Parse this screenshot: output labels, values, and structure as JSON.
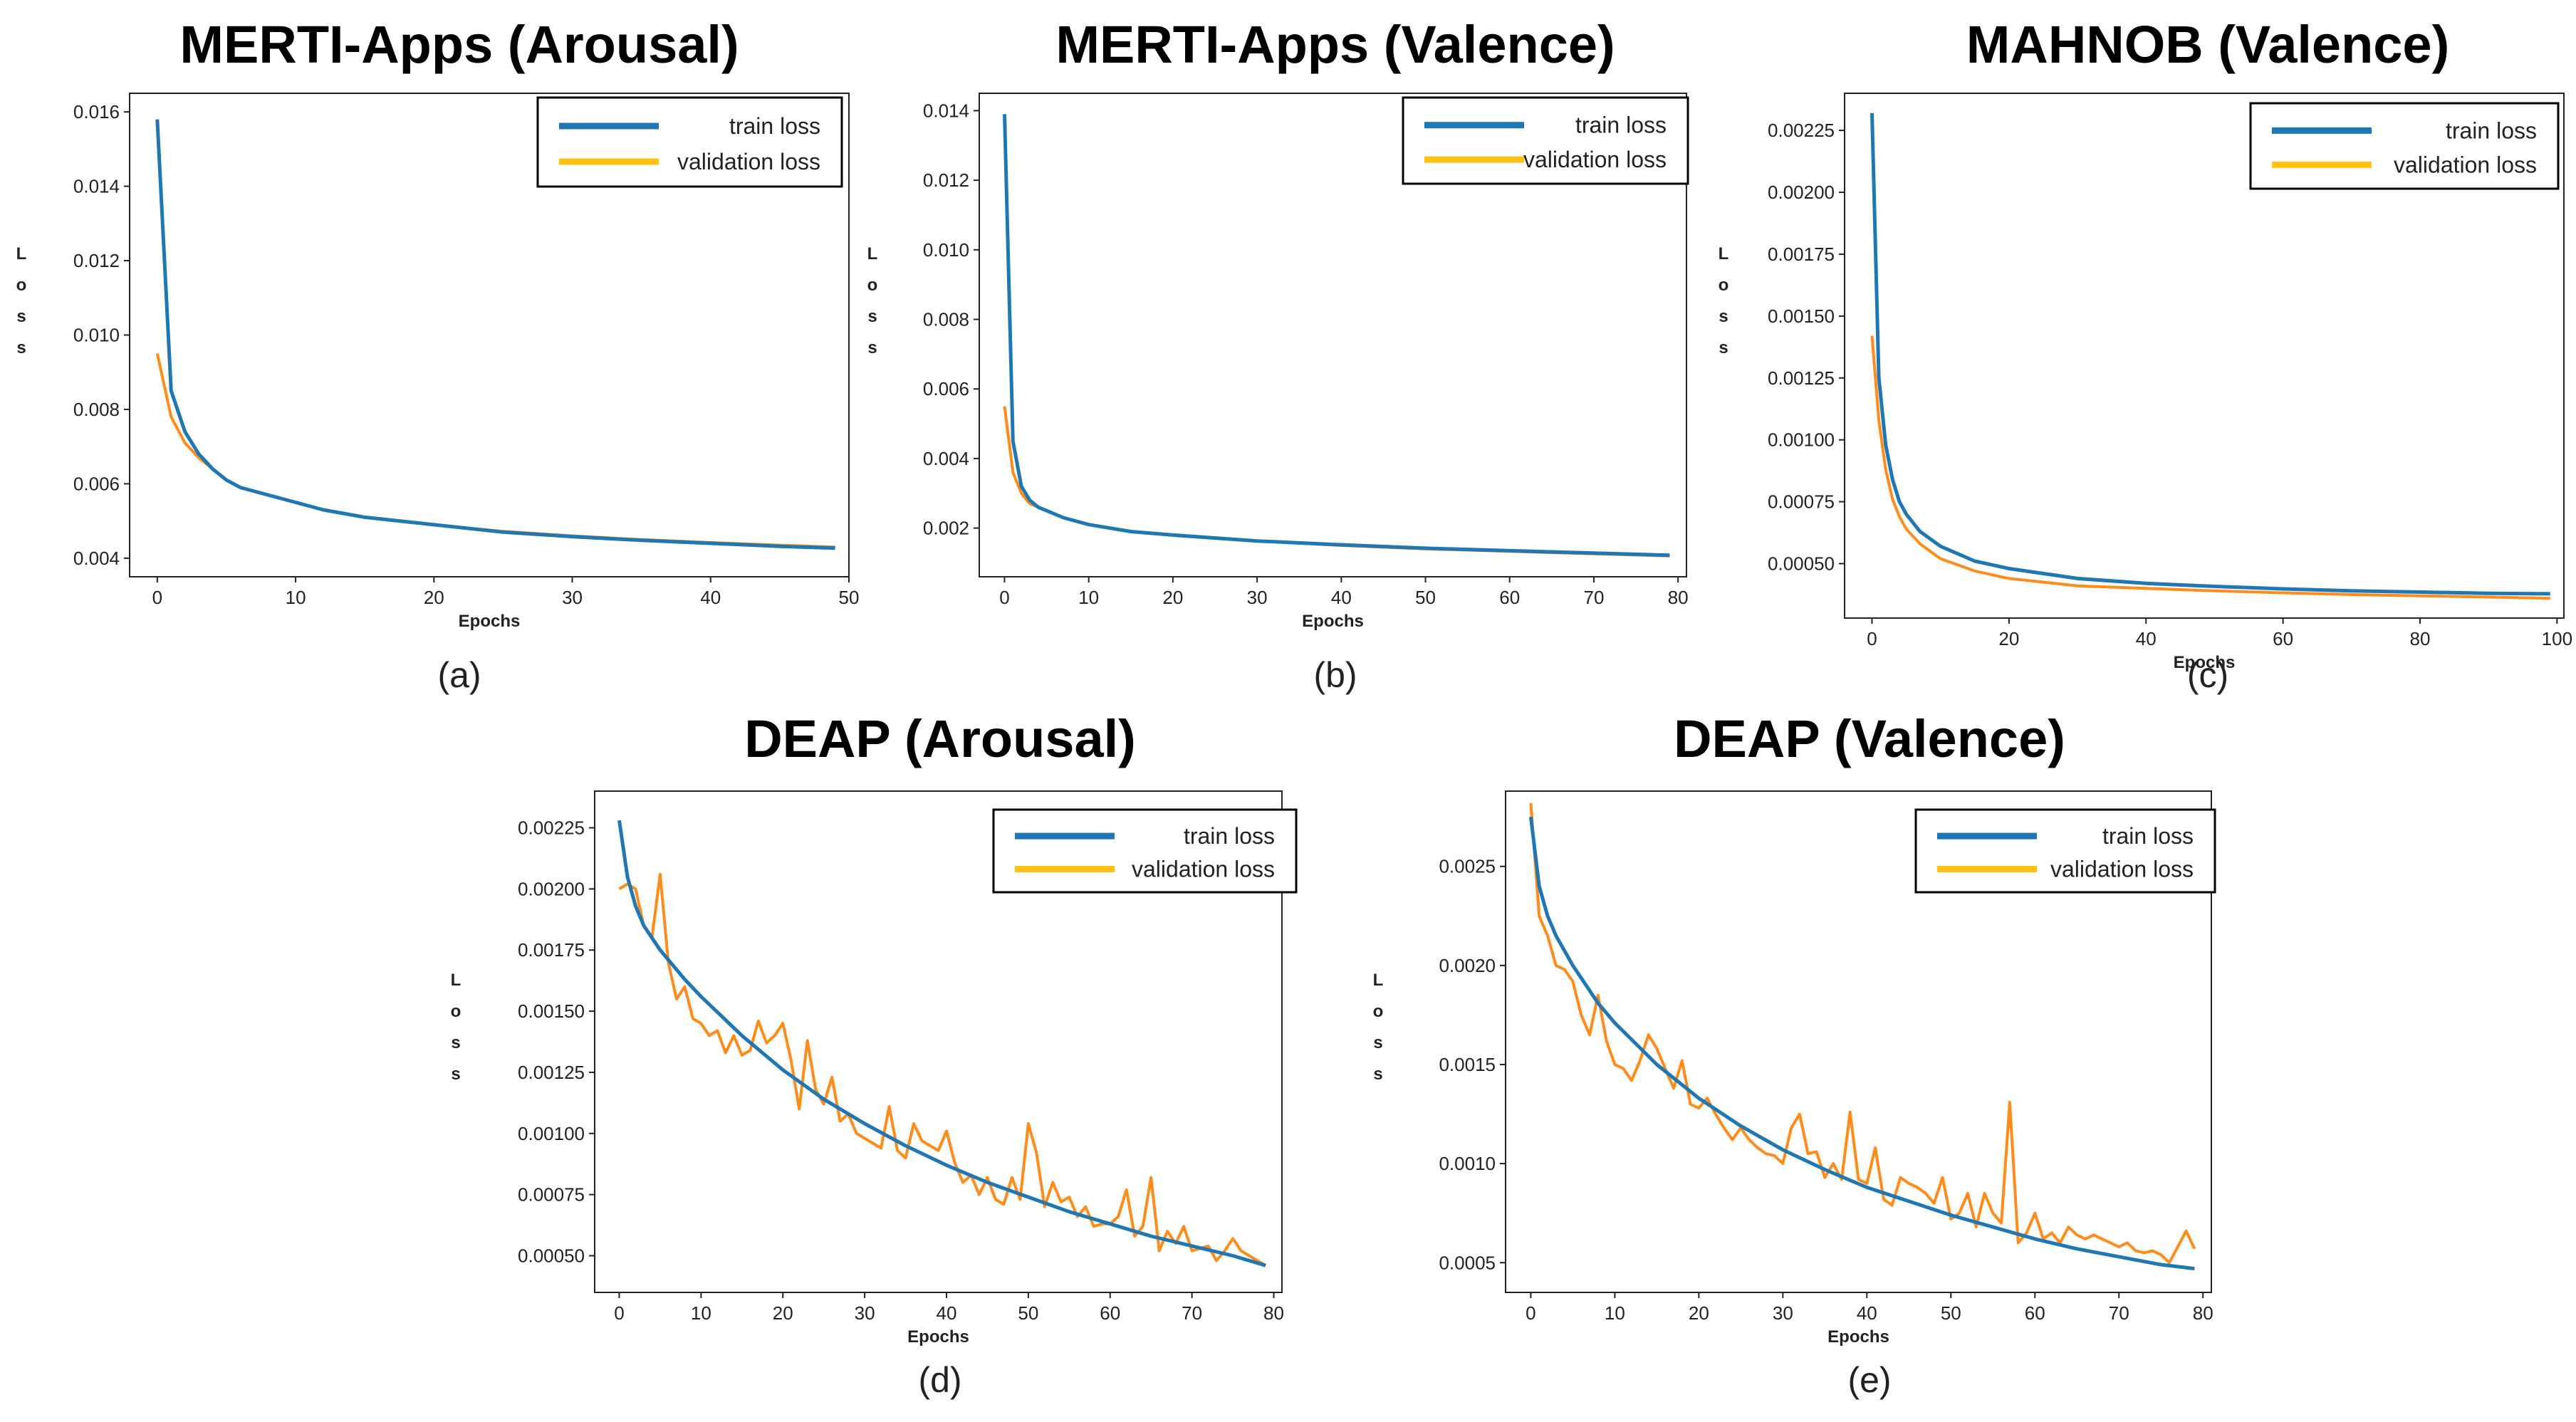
{
  "colors": {
    "train": "#1f77b4",
    "validation": "#ff8c1a",
    "legend_validation": "#ffc20e"
  },
  "chart_data": [
    {
      "type": "line",
      "title": "MERTI-Apps (Arousal)",
      "panel_label": "(a)",
      "xlabel": "Epochs",
      "ylabel": "Loss",
      "xlim": [
        -2,
        50
      ],
      "ylim": [
        0.0035,
        0.0165
      ],
      "xticks": [
        0,
        10,
        20,
        30,
        40,
        50
      ],
      "yticks": [
        0.004,
        0.006,
        0.008,
        0.01,
        0.012,
        0.014,
        0.016
      ],
      "ytick_labels": [
        "0.004",
        "0.006",
        "0.008",
        "0.010",
        "0.012",
        "0.014",
        "0.016"
      ],
      "legend": [
        "train loss",
        "validation loss"
      ],
      "legend_position": "top-right",
      "series": [
        {
          "name": "train loss",
          "x": [
            0,
            1,
            2,
            3,
            4,
            5,
            6,
            7,
            8,
            10,
            12,
            15,
            20,
            25,
            30,
            35,
            40,
            45,
            49
          ],
          "values": [
            0.0158,
            0.0085,
            0.0074,
            0.0068,
            0.0064,
            0.0061,
            0.0059,
            0.0058,
            0.0057,
            0.0055,
            0.0053,
            0.0051,
            0.0049,
            0.0047,
            0.00458,
            0.00448,
            0.0044,
            0.00432,
            0.00427
          ]
        },
        {
          "name": "validation loss",
          "x": [
            0,
            1,
            2,
            3,
            4,
            5,
            6,
            7,
            8,
            10,
            12,
            15,
            20,
            25,
            30,
            35,
            40,
            45,
            49
          ],
          "values": [
            0.0095,
            0.0078,
            0.0071,
            0.0067,
            0.0064,
            0.0061,
            0.0059,
            0.0058,
            0.0057,
            0.0055,
            0.0053,
            0.0051,
            0.0049,
            0.00472,
            0.0046,
            0.0045,
            0.00442,
            0.00435,
            0.0043
          ]
        }
      ]
    },
    {
      "type": "line",
      "title": "MERTI-Apps (Valence)",
      "panel_label": "(b)",
      "xlabel": "Epochs",
      "ylabel": "Loss",
      "xlim": [
        -3,
        81
      ],
      "ylim": [
        0.0006,
        0.0145
      ],
      "xticks": [
        0,
        10,
        20,
        30,
        40,
        50,
        60,
        70,
        80
      ],
      "yticks": [
        0.002,
        0.004,
        0.006,
        0.008,
        0.01,
        0.012,
        0.014
      ],
      "ytick_labels": [
        "0.002",
        "0.004",
        "0.006",
        "0.008",
        "0.010",
        "0.012",
        "0.014"
      ],
      "legend": [
        "train loss",
        "validation loss"
      ],
      "legend_position": "top-right",
      "series": [
        {
          "name": "train loss",
          "x": [
            0,
            1,
            2,
            3,
            4,
            5,
            7,
            10,
            15,
            20,
            30,
            40,
            50,
            60,
            70,
            79
          ],
          "values": [
            0.0139,
            0.0045,
            0.0032,
            0.0028,
            0.0026,
            0.0025,
            0.0023,
            0.0021,
            0.0019,
            0.0018,
            0.00163,
            0.00152,
            0.00142,
            0.00135,
            0.00128,
            0.00122
          ]
        },
        {
          "name": "validation loss",
          "x": [
            0,
            1,
            2,
            3,
            4,
            5,
            7,
            10,
            15,
            20,
            30,
            40,
            50,
            60,
            70,
            79
          ],
          "values": [
            0.0055,
            0.0036,
            0.003,
            0.0027,
            0.0026,
            0.0025,
            0.0023,
            0.0021,
            0.0019,
            0.0018,
            0.00163,
            0.0015,
            0.0014,
            0.00133,
            0.00126,
            0.0012
          ]
        }
      ]
    },
    {
      "type": "line",
      "title": "MAHNOB (Valence)",
      "panel_label": "(c)",
      "xlabel": "Epochs",
      "ylabel": "Loss",
      "xlim": [
        -4,
        101
      ],
      "ylim": [
        0.00028,
        0.0024
      ],
      "xticks": [
        0,
        20,
        40,
        60,
        80,
        100
      ],
      "yticks": [
        0.0005,
        0.00075,
        0.001,
        0.00125,
        0.0015,
        0.00175,
        0.002,
        0.00225
      ],
      "ytick_labels": [
        "0.00050",
        "0.00075",
        "0.00100",
        "0.00125",
        "0.00150",
        "0.00175",
        "0.00200",
        "0.00225"
      ],
      "legend": [
        "train loss",
        "validation loss"
      ],
      "legend_position": "top-right",
      "series": [
        {
          "name": "train loss",
          "x": [
            0,
            1,
            2,
            3,
            4,
            5,
            7,
            10,
            15,
            20,
            30,
            40,
            50,
            60,
            70,
            80,
            90,
            99
          ],
          "values": [
            0.00232,
            0.00125,
            0.00098,
            0.00084,
            0.00075,
            0.0007,
            0.00063,
            0.00057,
            0.00051,
            0.00048,
            0.00044,
            0.00042,
            0.000408,
            0.000398,
            0.00039,
            0.000385,
            0.00038,
            0.000378
          ]
        },
        {
          "name": "validation loss",
          "x": [
            0,
            1,
            2,
            3,
            4,
            5,
            7,
            10,
            15,
            20,
            30,
            40,
            50,
            60,
            70,
            80,
            90,
            99
          ],
          "values": [
            0.00142,
            0.00108,
            0.00088,
            0.00076,
            0.00069,
            0.00064,
            0.00058,
            0.00052,
            0.00047,
            0.00044,
            0.00041,
            0.0004,
            0.00039,
            0.000382,
            0.000375,
            0.00037,
            0.000365,
            0.00036
          ]
        }
      ]
    },
    {
      "type": "line",
      "title": "DEAP (Arousal)",
      "panel_label": "(d)",
      "xlabel": "Epochs",
      "ylabel": "Loss",
      "xlim": [
        -3,
        81
      ],
      "ylim": [
        0.00035,
        0.0024
      ],
      "xticks": [
        0,
        10,
        20,
        30,
        40,
        50,
        60,
        70,
        80
      ],
      "yticks": [
        0.0005,
        0.00075,
        0.001,
        0.00125,
        0.0015,
        0.00175,
        0.002,
        0.00225
      ],
      "ytick_labels": [
        "0.00050",
        "0.00075",
        "0.00100",
        "0.00125",
        "0.00150",
        "0.00175",
        "0.00200",
        "0.00225"
      ],
      "legend": [
        "train loss",
        "validation loss"
      ],
      "legend_position": "top-right",
      "series": [
        {
          "name": "train loss",
          "x": [
            0,
            1,
            2,
            3,
            5,
            8,
            10,
            15,
            20,
            25,
            30,
            35,
            40,
            45,
            50,
            55,
            60,
            65,
            70,
            75,
            79
          ],
          "values": [
            0.00228,
            0.00205,
            0.00193,
            0.00185,
            0.00175,
            0.00163,
            0.00156,
            0.0014,
            0.00126,
            0.00114,
            0.00104,
            0.00095,
            0.00087,
            0.0008,
            0.00074,
            0.00068,
            0.00063,
            0.00058,
            0.00054,
            0.0005,
            0.00046
          ]
        },
        {
          "name": "validation loss",
          "x": [
            0,
            1,
            2,
            3,
            4,
            5,
            6,
            7,
            8,
            9,
            10,
            11,
            12,
            13,
            14,
            15,
            16,
            17,
            18,
            19,
            20,
            21,
            22,
            23,
            24,
            25,
            26,
            27,
            28,
            29,
            30,
            31,
            32,
            33,
            34,
            35,
            36,
            37,
            38,
            39,
            40,
            41,
            42,
            43,
            44,
            45,
            46,
            47,
            48,
            49,
            50,
            51,
            52,
            53,
            54,
            55,
            56,
            57,
            58,
            59,
            60,
            61,
            62,
            63,
            64,
            65,
            66,
            67,
            68,
            69,
            70,
            71,
            72,
            73,
            74,
            75,
            76,
            77,
            78,
            79
          ],
          "values": [
            0.002,
            0.00202,
            0.002,
            0.00185,
            0.0018,
            0.00206,
            0.0017,
            0.00155,
            0.0016,
            0.00147,
            0.00145,
            0.0014,
            0.00142,
            0.00133,
            0.0014,
            0.00132,
            0.00134,
            0.00146,
            0.00137,
            0.0014,
            0.00145,
            0.0013,
            0.0011,
            0.00138,
            0.00118,
            0.00112,
            0.00123,
            0.00105,
            0.00108,
            0.001,
            0.00098,
            0.00096,
            0.00094,
            0.00111,
            0.00093,
            0.0009,
            0.00104,
            0.00097,
            0.00095,
            0.00093,
            0.00101,
            0.00088,
            0.0008,
            0.00083,
            0.00075,
            0.00082,
            0.00073,
            0.00071,
            0.00082,
            0.00073,
            0.00104,
            0.00092,
            0.0007,
            0.0008,
            0.00072,
            0.00074,
            0.00066,
            0.0007,
            0.00062,
            0.00063,
            0.00063,
            0.00066,
            0.00077,
            0.00058,
            0.00062,
            0.00082,
            0.00052,
            0.0006,
            0.00055,
            0.00062,
            0.00052,
            0.00053,
            0.00054,
            0.00048,
            0.00052,
            0.00057,
            0.00052,
            0.0005,
            0.00048,
            0.00046
          ]
        }
      ]
    },
    {
      "type": "line",
      "title": "DEAP (Valence)",
      "panel_label": "(e)",
      "xlabel": "Epochs",
      "ylabel": "Loss",
      "xlim": [
        -3,
        81
      ],
      "ylim": [
        0.00035,
        0.00288
      ],
      "xticks": [
        0,
        10,
        20,
        30,
        40,
        50,
        60,
        70,
        80
      ],
      "yticks": [
        0.0005,
        0.001,
        0.0015,
        0.002,
        0.0025
      ],
      "ytick_labels": [
        "0.0005",
        "0.0010",
        "0.0015",
        "0.0020",
        "0.0025"
      ],
      "legend": [
        "train loss",
        "validation loss"
      ],
      "legend_position": "top-right",
      "series": [
        {
          "name": "train loss",
          "x": [
            0,
            1,
            2,
            3,
            5,
            8,
            10,
            15,
            20,
            25,
            30,
            35,
            40,
            45,
            50,
            55,
            60,
            65,
            70,
            75,
            79
          ],
          "values": [
            0.00275,
            0.0024,
            0.00225,
            0.00215,
            0.002,
            0.00181,
            0.00171,
            0.0015,
            0.00133,
            0.00119,
            0.00107,
            0.00097,
            0.00088,
            0.00081,
            0.00074,
            0.00068,
            0.00062,
            0.00057,
            0.00053,
            0.00049,
            0.00047
          ]
        },
        {
          "name": "validation loss",
          "x": [
            0,
            1,
            2,
            3,
            4,
            5,
            6,
            7,
            8,
            9,
            10,
            11,
            12,
            13,
            14,
            15,
            16,
            17,
            18,
            19,
            20,
            21,
            22,
            23,
            24,
            25,
            26,
            27,
            28,
            29,
            30,
            31,
            32,
            33,
            34,
            35,
            36,
            37,
            38,
            39,
            40,
            41,
            42,
            43,
            44,
            45,
            46,
            47,
            48,
            49,
            50,
            51,
            52,
            53,
            54,
            55,
            56,
            57,
            58,
            59,
            60,
            61,
            62,
            63,
            64,
            65,
            66,
            67,
            68,
            69,
            70,
            71,
            72,
            73,
            74,
            75,
            76,
            77,
            78,
            79
          ],
          "values": [
            0.00282,
            0.00225,
            0.00215,
            0.002,
            0.00198,
            0.00192,
            0.00175,
            0.00165,
            0.00185,
            0.00162,
            0.0015,
            0.00148,
            0.00142,
            0.00152,
            0.00165,
            0.00158,
            0.00148,
            0.00138,
            0.00152,
            0.0013,
            0.00128,
            0.00133,
            0.00125,
            0.00118,
            0.00112,
            0.00118,
            0.00112,
            0.00108,
            0.00105,
            0.00104,
            0.001,
            0.00118,
            0.00125,
            0.00105,
            0.00106,
            0.00093,
            0.001,
            0.00092,
            0.00126,
            0.00092,
            0.0009,
            0.00108,
            0.00082,
            0.00079,
            0.00093,
            0.0009,
            0.00088,
            0.00085,
            0.0008,
            0.00093,
            0.00072,
            0.00075,
            0.00085,
            0.00068,
            0.00085,
            0.00075,
            0.0007,
            0.00131,
            0.0006,
            0.00065,
            0.00075,
            0.00062,
            0.00065,
            0.0006,
            0.00068,
            0.00064,
            0.00062,
            0.00064,
            0.00062,
            0.0006,
            0.00058,
            0.0006,
            0.00056,
            0.00055,
            0.00056,
            0.00054,
            0.0005,
            0.00058,
            0.00066,
            0.00057
          ]
        }
      ]
    }
  ]
}
